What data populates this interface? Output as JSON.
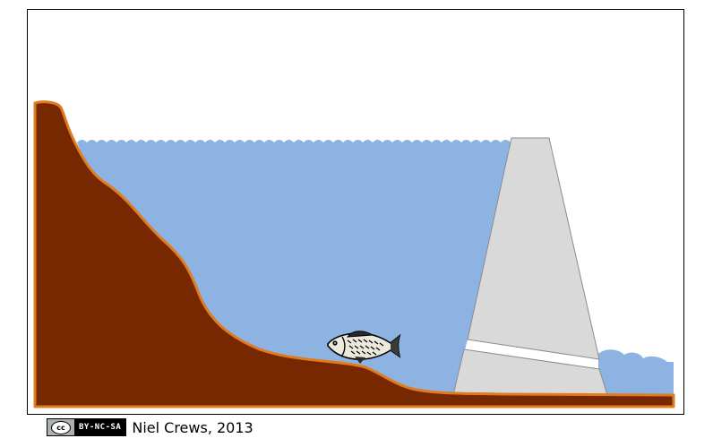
{
  "license": {
    "logo_text": "cc",
    "terms": "BY-NC-SA"
  },
  "credit": {
    "author_year": "Niel Crews, 2013"
  },
  "colors": {
    "water": "#8db3e2",
    "earth": "#772800",
    "earth_outline": "#e07b20",
    "dam": "#d9d9d9",
    "dam_outline": "#8c8c8c",
    "frame": "#000000"
  }
}
